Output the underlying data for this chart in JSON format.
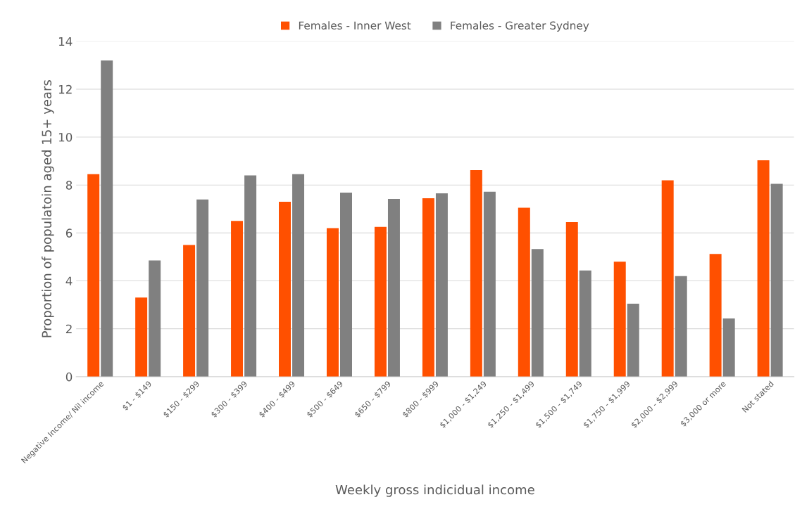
{
  "chart_data": {
    "type": "bar",
    "xlabel": "Weekly gross indicidual income",
    "ylabel": "Proportion of populatoin aged 15+ years",
    "categories": [
      "Negative Income/ Nil income",
      "$1 - $149",
      "$150 - $299",
      "$300 - $399",
      "$400 - $499",
      "$500 - $649",
      "$650 - $799",
      "$800 - $999",
      "$1,000 - $1,249",
      "$1,250 - $1,499",
      "$1,500 - $1,749",
      "$1,750 - $1,999",
      "$2,000 - $2,999",
      "$3,000 or more",
      "Not stated"
    ],
    "series": [
      {
        "name": "Females - Inner West",
        "color": "#ff5000",
        "values": [
          8.45,
          3.3,
          5.5,
          6.5,
          7.3,
          6.2,
          6.25,
          7.45,
          8.62,
          7.05,
          6.45,
          4.8,
          8.2,
          5.12,
          9.03
        ]
      },
      {
        "name": "Females - Greater Sydney",
        "color": "#808080",
        "values": [
          13.2,
          4.85,
          7.4,
          8.4,
          8.45,
          7.68,
          7.42,
          7.65,
          7.72,
          5.33,
          4.43,
          3.05,
          4.2,
          2.43,
          8.05
        ]
      }
    ],
    "ylim": [
      0,
      14
    ],
    "yticks": [
      0,
      2,
      4,
      6,
      8,
      10,
      12,
      14
    ],
    "grid": "y",
    "legend": "top"
  }
}
